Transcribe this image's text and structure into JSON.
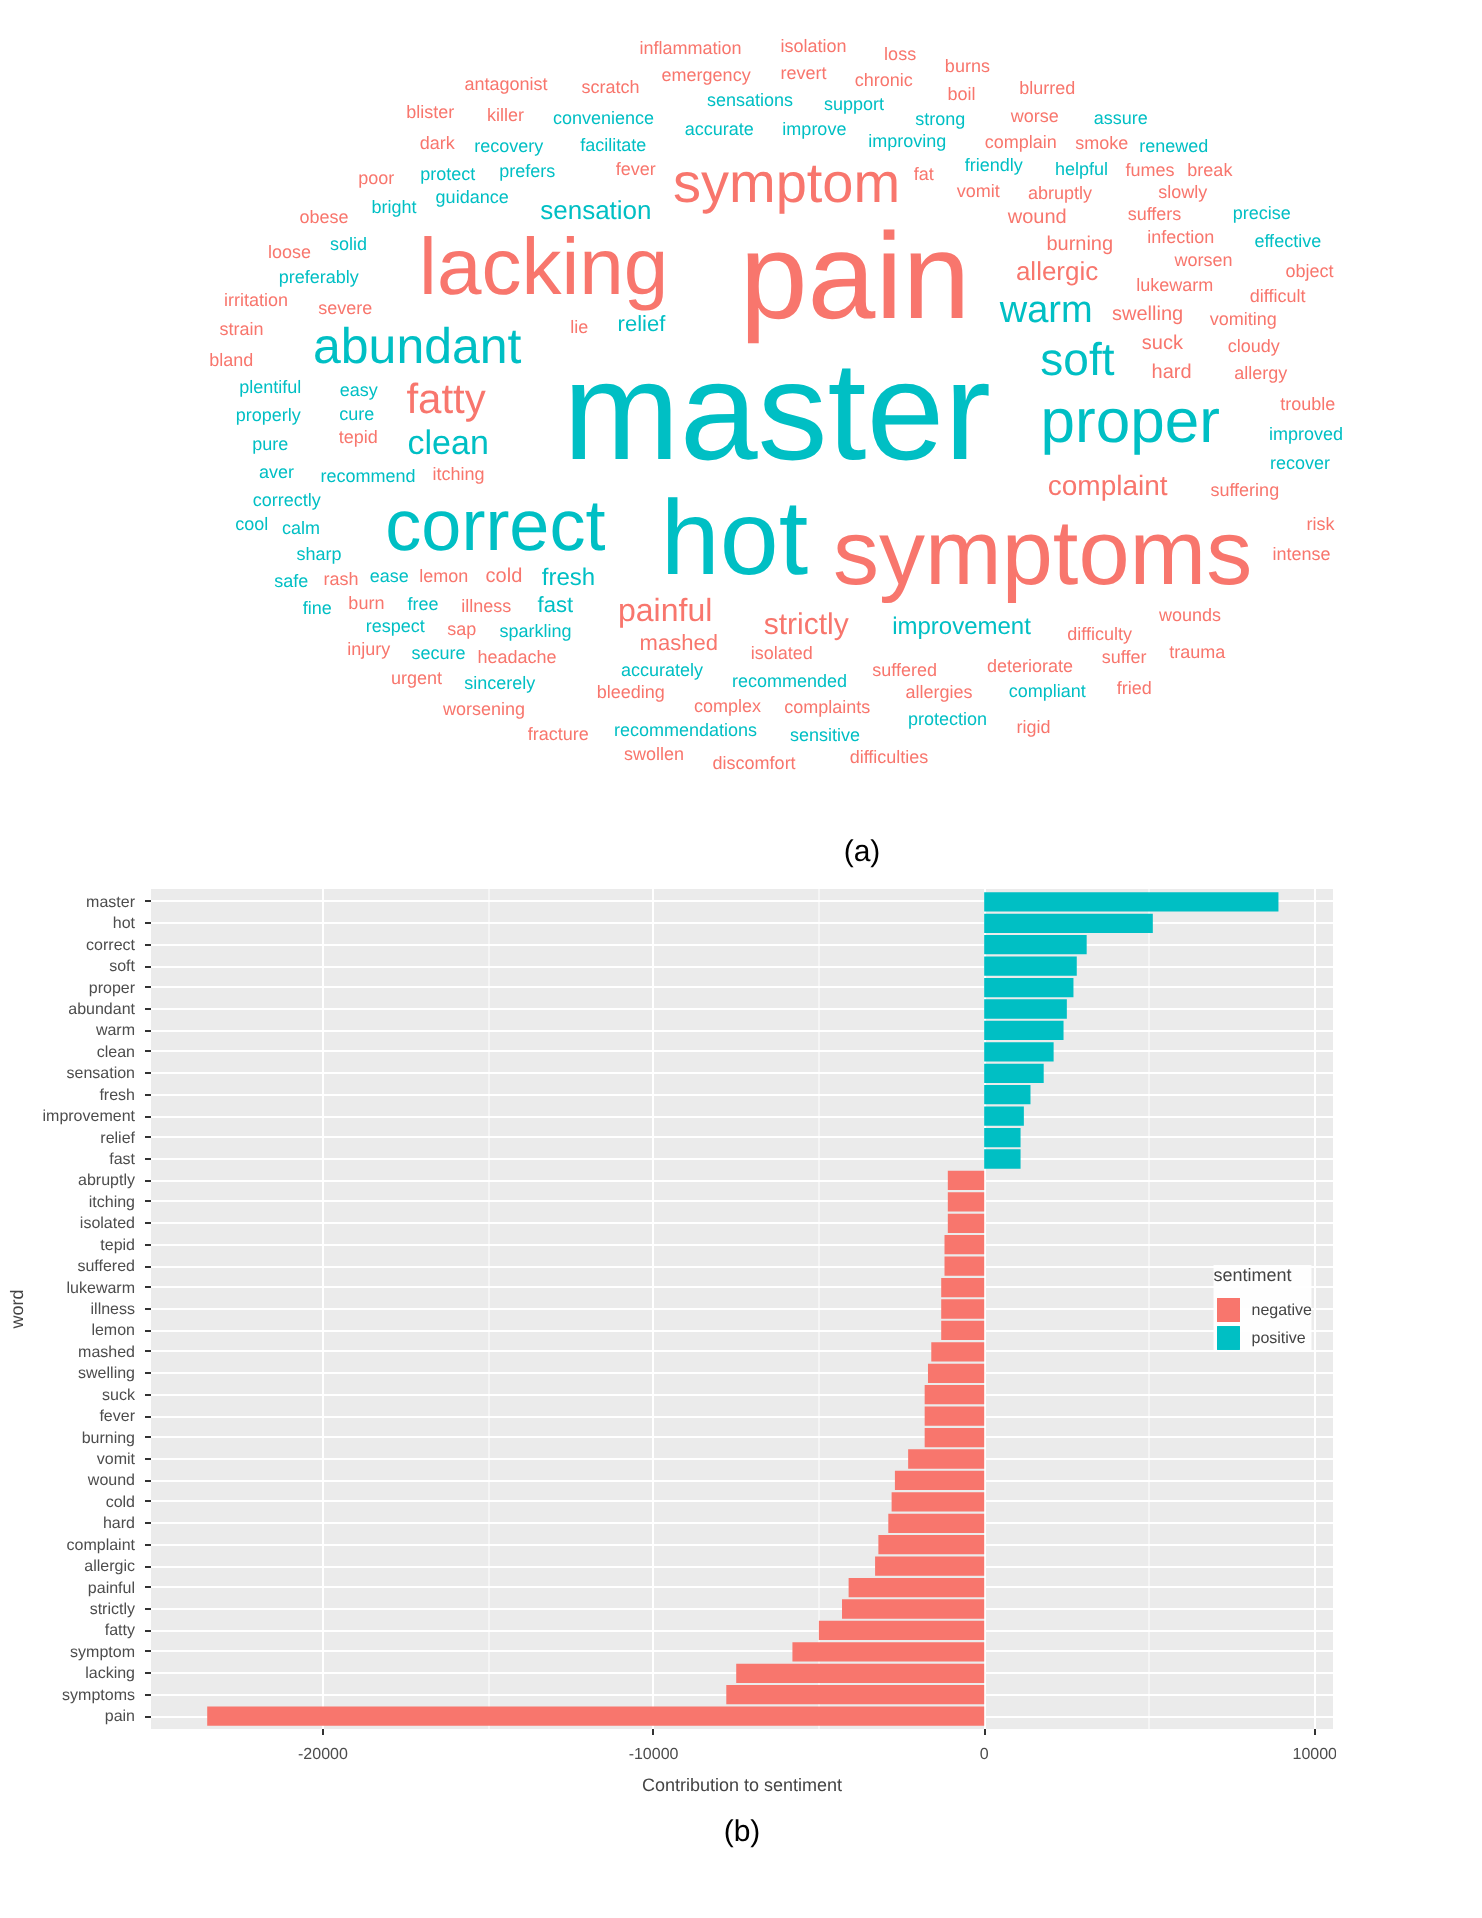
{
  "chart_data": [
    {
      "type": "other",
      "annotations": [
        "(a)"
      ],
      "categories": [
        "master",
        "pain",
        "hot",
        "symptoms",
        "lacking",
        "correct",
        "proper",
        "symptom",
        "abundant",
        "soft",
        "fatty",
        "warm",
        "clean",
        "painful",
        "strictly",
        "complaint",
        "sensation",
        "allergic",
        "fresh",
        "improvement",
        "relief",
        "fast",
        "mashed",
        "cold",
        "hard",
        "suck",
        "swelling",
        "burning",
        "wound",
        "vomit",
        "fever",
        "recommend",
        "sparkling",
        "accurately",
        "recommended",
        "suffered",
        "isolated",
        "lukewarm",
        "itching",
        "illness",
        "abruptly",
        "tepid",
        "lemon",
        "friendly",
        "improving",
        "improve",
        "accurate",
        "easy",
        "facilitate",
        "prefers",
        "guidance",
        "headache",
        "bleeding",
        "complex",
        "complaints",
        "allergies",
        "deteriorate",
        "difficulty",
        "suffering",
        "severe",
        "allergy",
        "cloudy",
        "vomiting",
        "worsen",
        "infection",
        "suffers",
        "complain",
        "helpful",
        "strong",
        "support",
        "sensations",
        "convenience",
        "recovery",
        "protect",
        "preferably",
        "cure",
        "plentiful",
        "ease",
        "properly",
        "bright",
        "free",
        "solid",
        "pure",
        "correctly",
        "aver",
        "calm",
        "respect",
        "secure",
        "sincerely",
        "recommendations",
        "sensitive",
        "protection",
        "sharp",
        "compliant",
        "recover",
        "improved",
        "trouble",
        "suffer",
        "wounds",
        "difficult",
        "rash",
        "slowly",
        "burn",
        "fumes",
        "smoke",
        "worse",
        "boil",
        "chronic",
        "revert",
        "emergency",
        "scratch",
        "killer",
        "irritation",
        "worsening",
        "dark",
        "poor",
        "obese",
        "strain",
        "injury",
        "urgent",
        "fracture",
        "swollen",
        "discomfort",
        "difficulties",
        "loose",
        "bland",
        "rigid",
        "fried",
        "trauma",
        "intense",
        "lie",
        "object",
        "cool",
        "safe",
        "effective",
        "precise",
        "renewed",
        "fine",
        "assure",
        "blurred",
        "risk",
        "fat",
        "break",
        "sap",
        "burns",
        "loss",
        "isolation",
        "inflammation",
        "antagonist",
        "blister"
      ],
      "colors": [
        "#00bfc4",
        "#f8766d",
        "#00bfc4",
        "#f8766d",
        "#f8766d",
        "#00bfc4",
        "#00bfc4",
        "#f8766d",
        "#00bfc4",
        "#00bfc4",
        "#f8766d",
        "#00bfc4",
        "#00bfc4",
        "#f8766d",
        "#f8766d",
        "#f8766d",
        "#00bfc4",
        "#f8766d",
        "#00bfc4",
        "#00bfc4",
        "#00bfc4",
        "#00bfc4",
        "#f8766d",
        "#f8766d",
        "#f8766d",
        "#f8766d",
        "#f8766d",
        "#f8766d",
        "#f8766d",
        "#f8766d",
        "#f8766d",
        "#00bfc4",
        "#00bfc4",
        "#00bfc4",
        "#00bfc4",
        "#f8766d",
        "#f8766d",
        "#f8766d",
        "#f8766d",
        "#f8766d",
        "#f8766d",
        "#f8766d",
        "#f8766d",
        "#00bfc4",
        "#00bfc4",
        "#00bfc4",
        "#00bfc4",
        "#00bfc4",
        "#00bfc4",
        "#00bfc4",
        "#00bfc4",
        "#f8766d",
        "#f8766d",
        "#f8766d",
        "#f8766d",
        "#f8766d",
        "#f8766d",
        "#f8766d",
        "#f8766d",
        "#f8766d",
        "#f8766d",
        "#f8766d",
        "#f8766d",
        "#f8766d",
        "#f8766d",
        "#f8766d",
        "#f8766d",
        "#00bfc4",
        "#00bfc4",
        "#00bfc4",
        "#00bfc4",
        "#00bfc4",
        "#00bfc4",
        "#00bfc4",
        "#00bfc4",
        "#00bfc4",
        "#00bfc4",
        "#00bfc4",
        "#00bfc4",
        "#00bfc4",
        "#00bfc4",
        "#00bfc4",
        "#00bfc4",
        "#00bfc4",
        "#00bfc4",
        "#00bfc4",
        "#00bfc4",
        "#00bfc4",
        "#00bfc4",
        "#00bfc4",
        "#00bfc4",
        "#00bfc4",
        "#00bfc4",
        "#00bfc4",
        "#00bfc4",
        "#00bfc4",
        "#f8766d",
        "#f8766d",
        "#f8766d",
        "#f8766d",
        "#f8766d",
        "#f8766d",
        "#f8766d",
        "#f8766d",
        "#f8766d",
        "#f8766d",
        "#f8766d",
        "#f8766d",
        "#f8766d",
        "#f8766d",
        "#f8766d",
        "#f8766d",
        "#f8766d",
        "#f8766d",
        "#f8766d",
        "#f8766d",
        "#f8766d",
        "#f8766d",
        "#f8766d",
        "#f8766d",
        "#f8766d",
        "#f8766d",
        "#f8766d",
        "#f8766d",
        "#f8766d",
        "#f8766d",
        "#f8766d",
        "#f8766d",
        "#f8766d",
        "#f8766d",
        "#f8766d",
        "#f8766d",
        "#00bfc4",
        "#00bfc4",
        "#00bfc4",
        "#00bfc4",
        "#00bfc4",
        "#00bfc4",
        "#00bfc4",
        "#f8766d",
        "#f8766d",
        "#f8766d",
        "#f8766d",
        "#f8766d",
        "#f8766d",
        "#f8766d",
        "#f8766d",
        "#f8766d",
        "#f8766d",
        "#f8766d"
      ]
    },
    {
      "type": "bar",
      "orientation": "horizontal",
      "annotations": [
        "(b)"
      ],
      "xlabel": "Contribution to sentiment",
      "ylabel": "word",
      "legend_title": "sentiment",
      "legend": "right",
      "grid": true,
      "xlim": [
        -25200,
        10550
      ],
      "xticks": [
        -20000,
        -10000,
        0,
        10000
      ],
      "categories": [
        "master",
        "hot",
        "correct",
        "soft",
        "proper",
        "abundant",
        "warm",
        "clean",
        "sensation",
        "fresh",
        "improvement",
        "relief",
        "fast",
        "abruptly",
        "itching",
        "isolated",
        "tepid",
        "suffered",
        "lukewarm",
        "illness",
        "lemon",
        "mashed",
        "swelling",
        "suck",
        "fever",
        "burning",
        "vomit",
        "wound",
        "cold",
        "hard",
        "complaint",
        "allergic",
        "painful",
        "strictly",
        "fatty",
        "symptom",
        "lacking",
        "symptoms",
        "pain"
      ],
      "series": [
        {
          "name": "negative",
          "color": "#f8766d",
          "values": [
            null,
            null,
            null,
            null,
            null,
            null,
            null,
            null,
            null,
            null,
            null,
            null,
            null,
            -1100,
            -1100,
            -1100,
            -1200,
            -1200,
            -1300,
            -1300,
            -1300,
            -1600,
            -1700,
            -1800,
            -1800,
            -1800,
            -2300,
            -2700,
            -2800,
            -2900,
            -3200,
            -3300,
            -4100,
            -4300,
            -5000,
            -5800,
            -7500,
            -7800,
            -23500
          ]
        },
        {
          "name": "positive",
          "color": "#00bfc4",
          "values": [
            8900,
            5100,
            3100,
            2800,
            2700,
            2500,
            2400,
            2100,
            1800,
            1400,
            1200,
            1100,
            1100,
            null,
            null,
            null,
            null,
            null,
            null,
            null,
            null,
            null,
            null,
            null,
            null,
            null,
            null,
            null,
            null,
            null,
            null,
            null,
            null,
            null,
            null,
            null,
            null,
            null,
            null
          ]
        }
      ]
    }
  ]
}
